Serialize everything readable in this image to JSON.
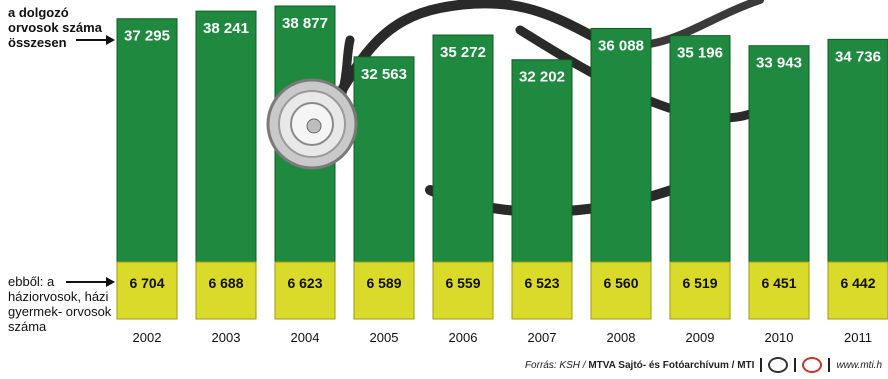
{
  "labels": {
    "total_label": "a dolgozó orvosok száma összesen",
    "gp_label": "ebből: a háziorvosok, házi gyermek- orvosok száma"
  },
  "source": {
    "prefix": "Forrás: KSH / ",
    "agency": "MTVA Sajtó- és Fotóarchívum / MTI",
    "site": "www.mti.h"
  },
  "colors": {
    "total_bar": "#1f8a3f",
    "total_bar_edge": "#0e5c26",
    "gp_bar": "#dada2b",
    "gp_bar_edge": "#9f9a12",
    "value_text_total": "#ffffff",
    "value_text_gp": "#111111"
  },
  "icons": [
    "stethoscope-icon",
    "mtva-logo-icon",
    "mti-logo-icon"
  ],
  "chart_data": {
    "type": "bar",
    "stacked": true,
    "categories": [
      "2002",
      "2003",
      "2004",
      "2005",
      "2006",
      "2007",
      "2008",
      "2009",
      "2010",
      "2011"
    ],
    "series": [
      {
        "name": "a dolgozó orvosok száma összesen",
        "values": [
          37295,
          38241,
          38877,
          32563,
          35272,
          32202,
          36088,
          35196,
          33943,
          34736
        ],
        "labels": [
          "37 295",
          "38 241",
          "38 877",
          "32 563",
          "35 272",
          "32 202",
          "36 088",
          "35 196",
          "33 943",
          "34 736"
        ]
      },
      {
        "name": "ebből: a háziorvosok, házi gyermek- orvosok száma",
        "values": [
          6704,
          6688,
          6623,
          6589,
          6559,
          6523,
          6560,
          6519,
          6451,
          6442
        ],
        "labels": [
          "6 704",
          "6 688",
          "6 623",
          "6 589",
          "6 559",
          "6 523",
          "6 560",
          "6 519",
          "6 451",
          "6 442"
        ]
      }
    ],
    "title": "",
    "xlabel": "",
    "ylabel": "",
    "grid": false
  }
}
